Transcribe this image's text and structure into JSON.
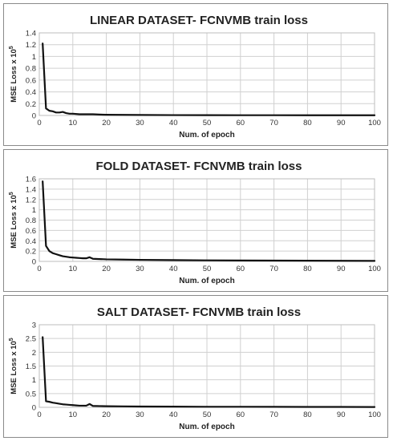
{
  "chart_data": [
    {
      "type": "line",
      "title": "LINEAR DATASET- FCNVMB train loss",
      "xlabel": "Num. of epoch",
      "ylabel": "MSE Loss  x 10",
      "ylabel_exp": "5",
      "xlim": [
        0,
        100
      ],
      "ylim": [
        0,
        1.4
      ],
      "xticks": [
        "0",
        "10",
        "20",
        "30",
        "40",
        "50",
        "60",
        "70",
        "80",
        "90",
        "100"
      ],
      "yticks": [
        "0",
        "0.2",
        "0.4",
        "0.6",
        "0.8",
        "1",
        "1.2",
        "1.4"
      ],
      "ytick_values": [
        0,
        0.2,
        0.4,
        0.6,
        0.8,
        1.0,
        1.2,
        1.4
      ],
      "grid": true,
      "series": [
        {
          "x": [
            1,
            2,
            3,
            4,
            5,
            6,
            7,
            8,
            9,
            10,
            12,
            14,
            16,
            18,
            20,
            25,
            30,
            40,
            50,
            60,
            70,
            80,
            90,
            100
          ],
          "values": [
            1.22,
            0.12,
            0.08,
            0.07,
            0.05,
            0.05,
            0.06,
            0.04,
            0.03,
            0.03,
            0.02,
            0.02,
            0.02,
            0.015,
            0.012,
            0.01,
            0.008,
            0.006,
            0.005,
            0.004,
            0.004,
            0.003,
            0.003,
            0.003
          ]
        }
      ]
    },
    {
      "type": "line",
      "title": "FOLD DATASET- FCNVMB train loss",
      "xlabel": "Num. of epoch",
      "ylabel": "MSE Loss  x 10",
      "ylabel_exp": "5",
      "xlim": [
        0,
        100
      ],
      "ylim": [
        0,
        1.6
      ],
      "xticks": [
        "0",
        "10",
        "20",
        "30",
        "40",
        "50",
        "60",
        "70",
        "80",
        "90",
        "100"
      ],
      "yticks": [
        "0",
        "0.2",
        "0.4",
        "0.6",
        "0.8",
        "1",
        "1.2",
        "1.4",
        "1.6"
      ],
      "ytick_values": [
        0,
        0.2,
        0.4,
        0.6,
        0.8,
        1.0,
        1.2,
        1.4,
        1.6
      ],
      "grid": true,
      "series": [
        {
          "x": [
            1,
            2,
            3,
            4,
            5,
            6,
            7,
            8,
            9,
            10,
            11,
            12,
            13,
            14,
            15,
            16,
            18,
            20,
            25,
            30,
            40,
            50,
            60,
            70,
            80,
            90,
            100
          ],
          "values": [
            1.55,
            0.3,
            0.2,
            0.16,
            0.14,
            0.12,
            0.1,
            0.09,
            0.08,
            0.075,
            0.07,
            0.065,
            0.06,
            0.06,
            0.08,
            0.05,
            0.045,
            0.04,
            0.035,
            0.03,
            0.025,
            0.02,
            0.018,
            0.015,
            0.013,
            0.012,
            0.01
          ]
        }
      ]
    },
    {
      "type": "line",
      "title": "SALT DATASET- FCNVMB train loss",
      "xlabel": "Num. of epoch",
      "ylabel": "MSE Loss  x 10",
      "ylabel_exp": "5",
      "xlim": [
        0,
        100
      ],
      "ylim": [
        0,
        3
      ],
      "xticks": [
        "0",
        "10",
        "20",
        "30",
        "40",
        "50",
        "60",
        "70",
        "80",
        "90",
        "100"
      ],
      "yticks": [
        "0",
        "0.5",
        "1",
        "1.5",
        "2",
        "2.5",
        "3"
      ],
      "ytick_values": [
        0,
        0.5,
        1.0,
        1.5,
        2.0,
        2.5,
        3.0
      ],
      "grid": true,
      "series": [
        {
          "x": [
            1,
            2,
            3,
            4,
            5,
            6,
            7,
            8,
            9,
            10,
            11,
            12,
            13,
            14,
            15,
            16,
            18,
            20,
            25,
            30,
            40,
            50,
            60,
            70,
            80,
            90,
            100
          ],
          "values": [
            2.55,
            0.22,
            0.2,
            0.17,
            0.15,
            0.13,
            0.11,
            0.1,
            0.09,
            0.08,
            0.07,
            0.06,
            0.06,
            0.06,
            0.12,
            0.05,
            0.045,
            0.04,
            0.035,
            0.03,
            0.025,
            0.02,
            0.02,
            0.018,
            0.015,
            0.015,
            0.012
          ]
        }
      ]
    }
  ]
}
